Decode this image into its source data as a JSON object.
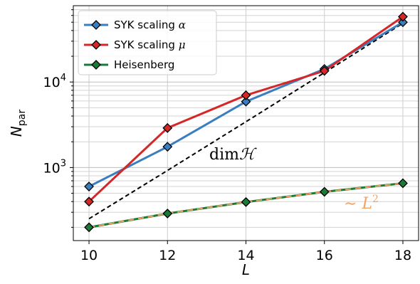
{
  "chart_data": {
    "type": "line",
    "x": [
      10,
      12,
      14,
      16,
      18
    ],
    "xlim": [
      9.6,
      18.4
    ],
    "xticks": [
      "10",
      "12",
      "14",
      "16",
      "18"
    ],
    "xlabel": "L",
    "ylabel_main": "N",
    "ylabel_sub": "par",
    "yscale": "log",
    "ylim": [
      140,
      78000
    ],
    "yticks": [
      {
        "value": 1000,
        "base": "10",
        "exp": "3"
      },
      {
        "value": 10000,
        "base": "10",
        "exp": "4"
      }
    ],
    "grid": true,
    "legend_position": "top-left",
    "series": [
      {
        "name_prefix": "SYK scaling ",
        "name_symbol": "α",
        "color": "#3a7ebf",
        "values": [
          600,
          1750,
          5900,
          14200,
          50000
        ]
      },
      {
        "name_prefix": "SYK scaling ",
        "name_symbol": "μ",
        "color": "#d62728",
        "values": [
          400,
          2900,
          7000,
          13500,
          58000
        ]
      },
      {
        "name_prefix": "Heisenberg",
        "name_symbol": "",
        "color": "#1a7a36",
        "values": [
          200,
          290,
          395,
          520,
          655
        ]
      }
    ],
    "reference_lines": [
      {
        "label": "dimℋ",
        "style": "dashed",
        "color": "#000000",
        "values": [
          252,
          924,
          3432,
          12870,
          48620
        ]
      },
      {
        "label": "∼ L²",
        "style": "dashed",
        "color": "#f4a261",
        "values": [
          200,
          290,
          395,
          520,
          655
        ]
      }
    ]
  }
}
